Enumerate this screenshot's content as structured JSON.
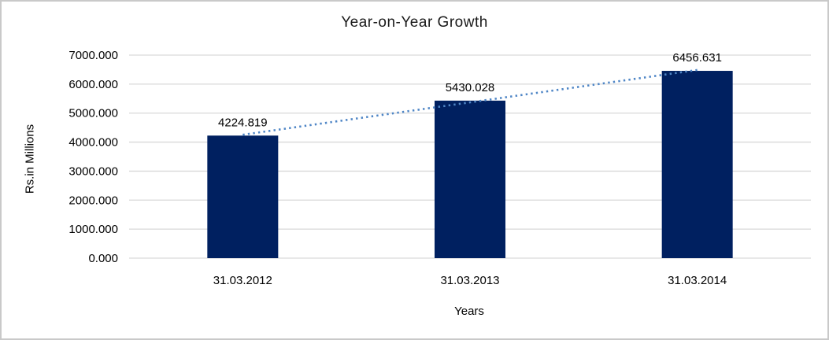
{
  "window": {
    "background": "#ffffff",
    "frame_border_color": "#c9c9c9"
  },
  "chart_data": {
    "type": "bar",
    "title": "Year-on-Year Growth",
    "categories": [
      "31.03.2012",
      "31.03.2013",
      "31.03.2014"
    ],
    "values": [
      4224.819,
      5430.028,
      6456.631
    ],
    "data_labels": [
      "4224.819",
      "5430.028",
      "6456.631"
    ],
    "xlabel": "Years",
    "ylabel": "Rs.in Millions",
    "ylim": [
      0,
      7000
    ],
    "ytick_step": 1000,
    "ytick_labels": [
      "0.000",
      "1000.000",
      "2000.000",
      "3000.000",
      "4000.000",
      "5000.000",
      "6000.000",
      "7000.000"
    ],
    "grid": true,
    "legend_position": "none",
    "trendline": {
      "type": "linear",
      "style": "dotted",
      "color": "#4f86c6"
    },
    "colors": {
      "bar_fill": "#002060",
      "gridline": "#d9d9d9",
      "axis_line": "#d9d9d9",
      "text": "#000000"
    }
  }
}
